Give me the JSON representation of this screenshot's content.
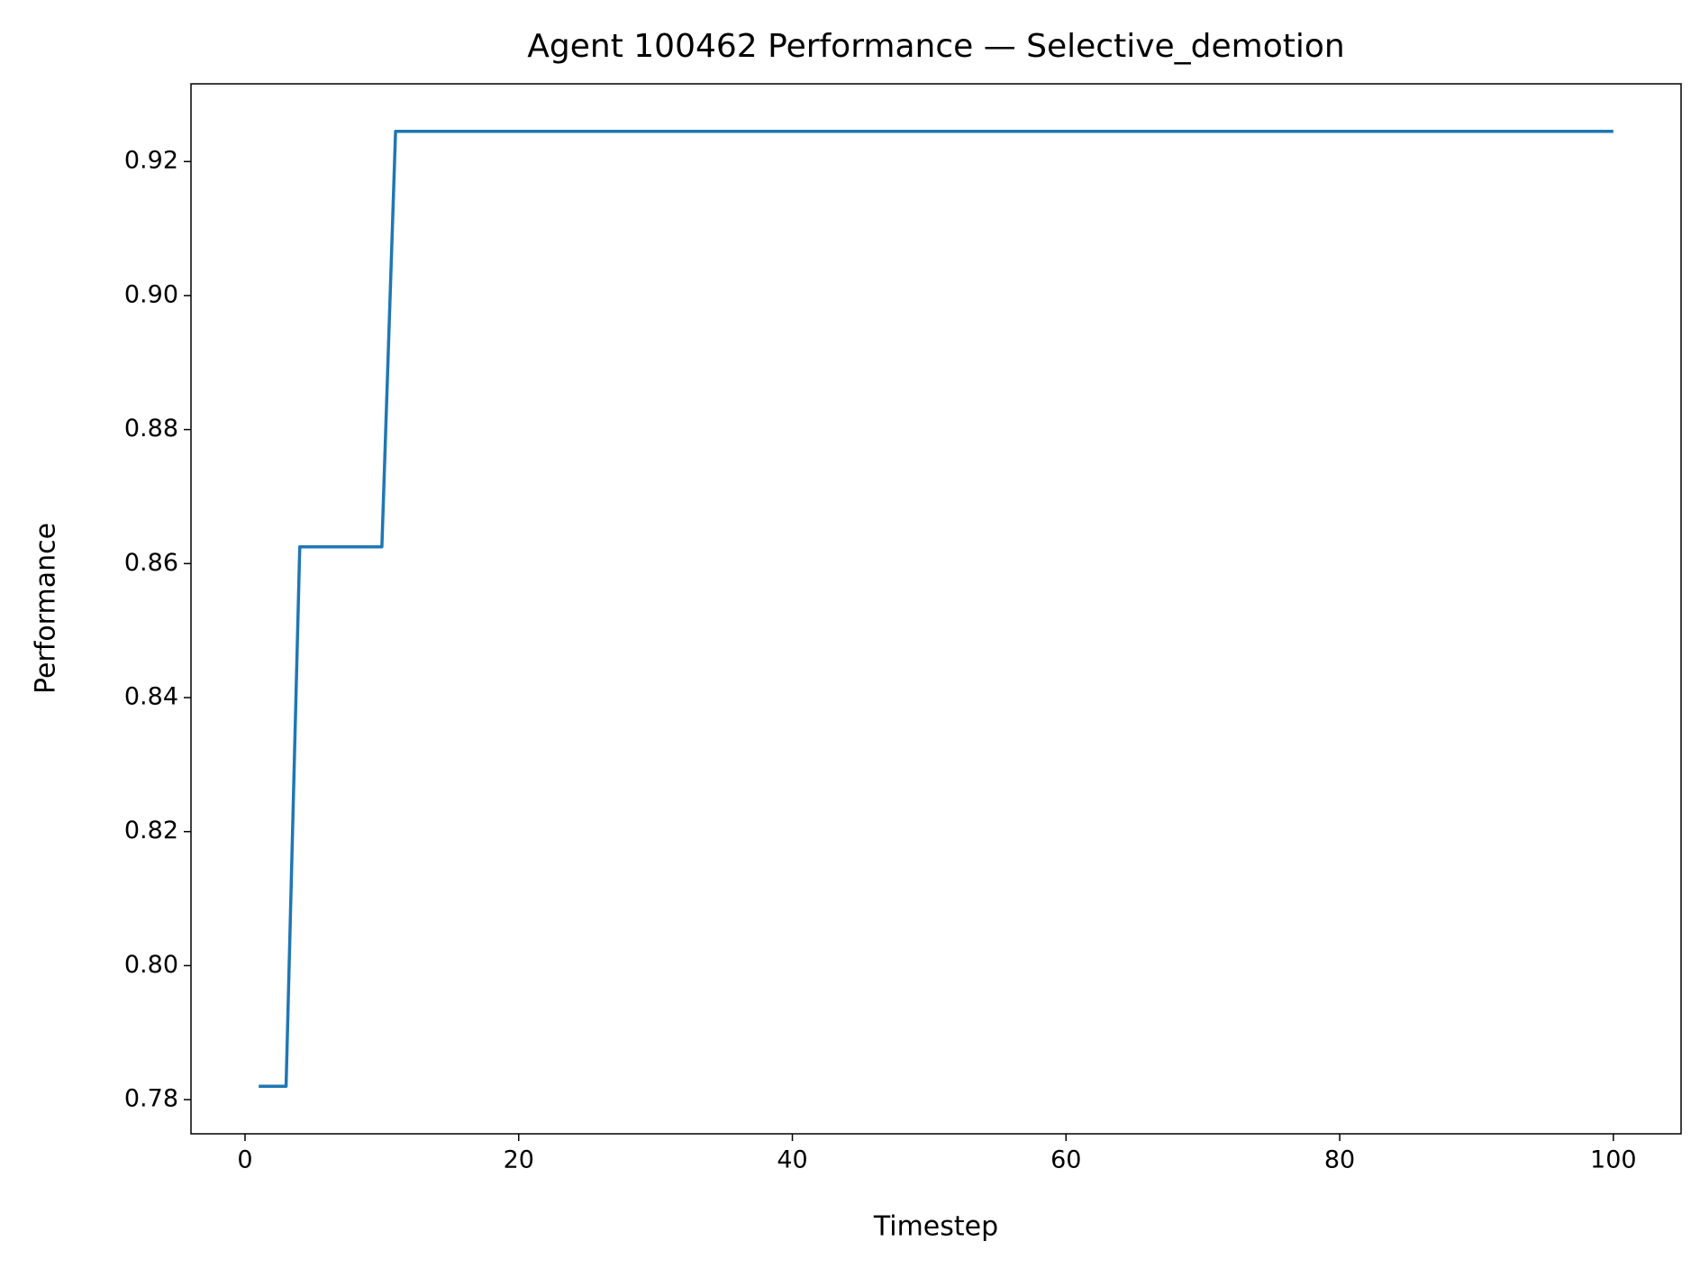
{
  "chart_data": {
    "type": "line",
    "title": "Agent 100462 Performance — Selective_demotion",
    "xlabel": "Timestep",
    "ylabel": "Performance",
    "x": [
      1,
      2,
      3,
      4,
      5,
      6,
      7,
      8,
      9,
      10,
      11,
      12,
      13,
      14,
      15,
      16,
      17,
      18,
      19,
      20,
      21,
      22,
      23,
      24,
      25,
      26,
      27,
      28,
      29,
      30,
      31,
      32,
      33,
      34,
      35,
      36,
      37,
      38,
      39,
      40,
      41,
      42,
      43,
      44,
      45,
      46,
      47,
      48,
      49,
      50,
      51,
      52,
      53,
      54,
      55,
      56,
      57,
      58,
      59,
      60,
      61,
      62,
      63,
      64,
      65,
      66,
      67,
      68,
      69,
      70,
      71,
      72,
      73,
      74,
      75,
      76,
      77,
      78,
      79,
      80,
      81,
      82,
      83,
      84,
      85,
      86,
      87,
      88,
      89,
      90,
      91,
      92,
      93,
      94,
      95,
      96,
      97,
      98,
      99,
      100
    ],
    "series": [
      {
        "color": "#1f77b4",
        "values": [
          0.782,
          0.782,
          0.782,
          0.8625,
          0.8625,
          0.8625,
          0.8625,
          0.8625,
          0.8625,
          0.8625,
          0.9245,
          0.9245,
          0.9245,
          0.9245,
          0.9245,
          0.9245,
          0.9245,
          0.9245,
          0.9245,
          0.9245,
          0.9245,
          0.9245,
          0.9245,
          0.9245,
          0.9245,
          0.9245,
          0.9245,
          0.9245,
          0.9245,
          0.9245,
          0.9245,
          0.9245,
          0.9245,
          0.9245,
          0.9245,
          0.9245,
          0.9245,
          0.9245,
          0.9245,
          0.9245,
          0.9245,
          0.9245,
          0.9245,
          0.9245,
          0.9245,
          0.9245,
          0.9245,
          0.9245,
          0.9245,
          0.9245,
          0.9245,
          0.9245,
          0.9245,
          0.9245,
          0.9245,
          0.9245,
          0.9245,
          0.9245,
          0.9245,
          0.9245,
          0.9245,
          0.9245,
          0.9245,
          0.9245,
          0.9245,
          0.9245,
          0.9245,
          0.9245,
          0.9245,
          0.9245,
          0.9245,
          0.9245,
          0.9245,
          0.9245,
          0.9245,
          0.9245,
          0.9245,
          0.9245,
          0.9245,
          0.9245,
          0.9245,
          0.9245,
          0.9245,
          0.9245,
          0.9245,
          0.9245,
          0.9245,
          0.9245,
          0.9245,
          0.9245,
          0.9245,
          0.9245,
          0.9245,
          0.9245,
          0.9245,
          0.9245,
          0.9245,
          0.9245,
          0.9245,
          0.9245
        ]
      }
    ],
    "xlim": [
      -3.95,
      104.95
    ],
    "xticks": [
      0,
      20,
      40,
      60,
      80,
      100
    ],
    "ylim": [
      0.7749,
      0.9316
    ],
    "yticks": [
      {
        "value": 0.78,
        "label": "0.78"
      },
      {
        "value": 0.8,
        "label": "0.80"
      },
      {
        "value": 0.82,
        "label": "0.82"
      },
      {
        "value": 0.84,
        "label": "0.84"
      },
      {
        "value": 0.86,
        "label": "0.86"
      },
      {
        "value": 0.88,
        "label": "0.88"
      },
      {
        "value": 0.9,
        "label": "0.90"
      },
      {
        "value": 0.92,
        "label": "0.92"
      }
    ],
    "grid": false
  }
}
